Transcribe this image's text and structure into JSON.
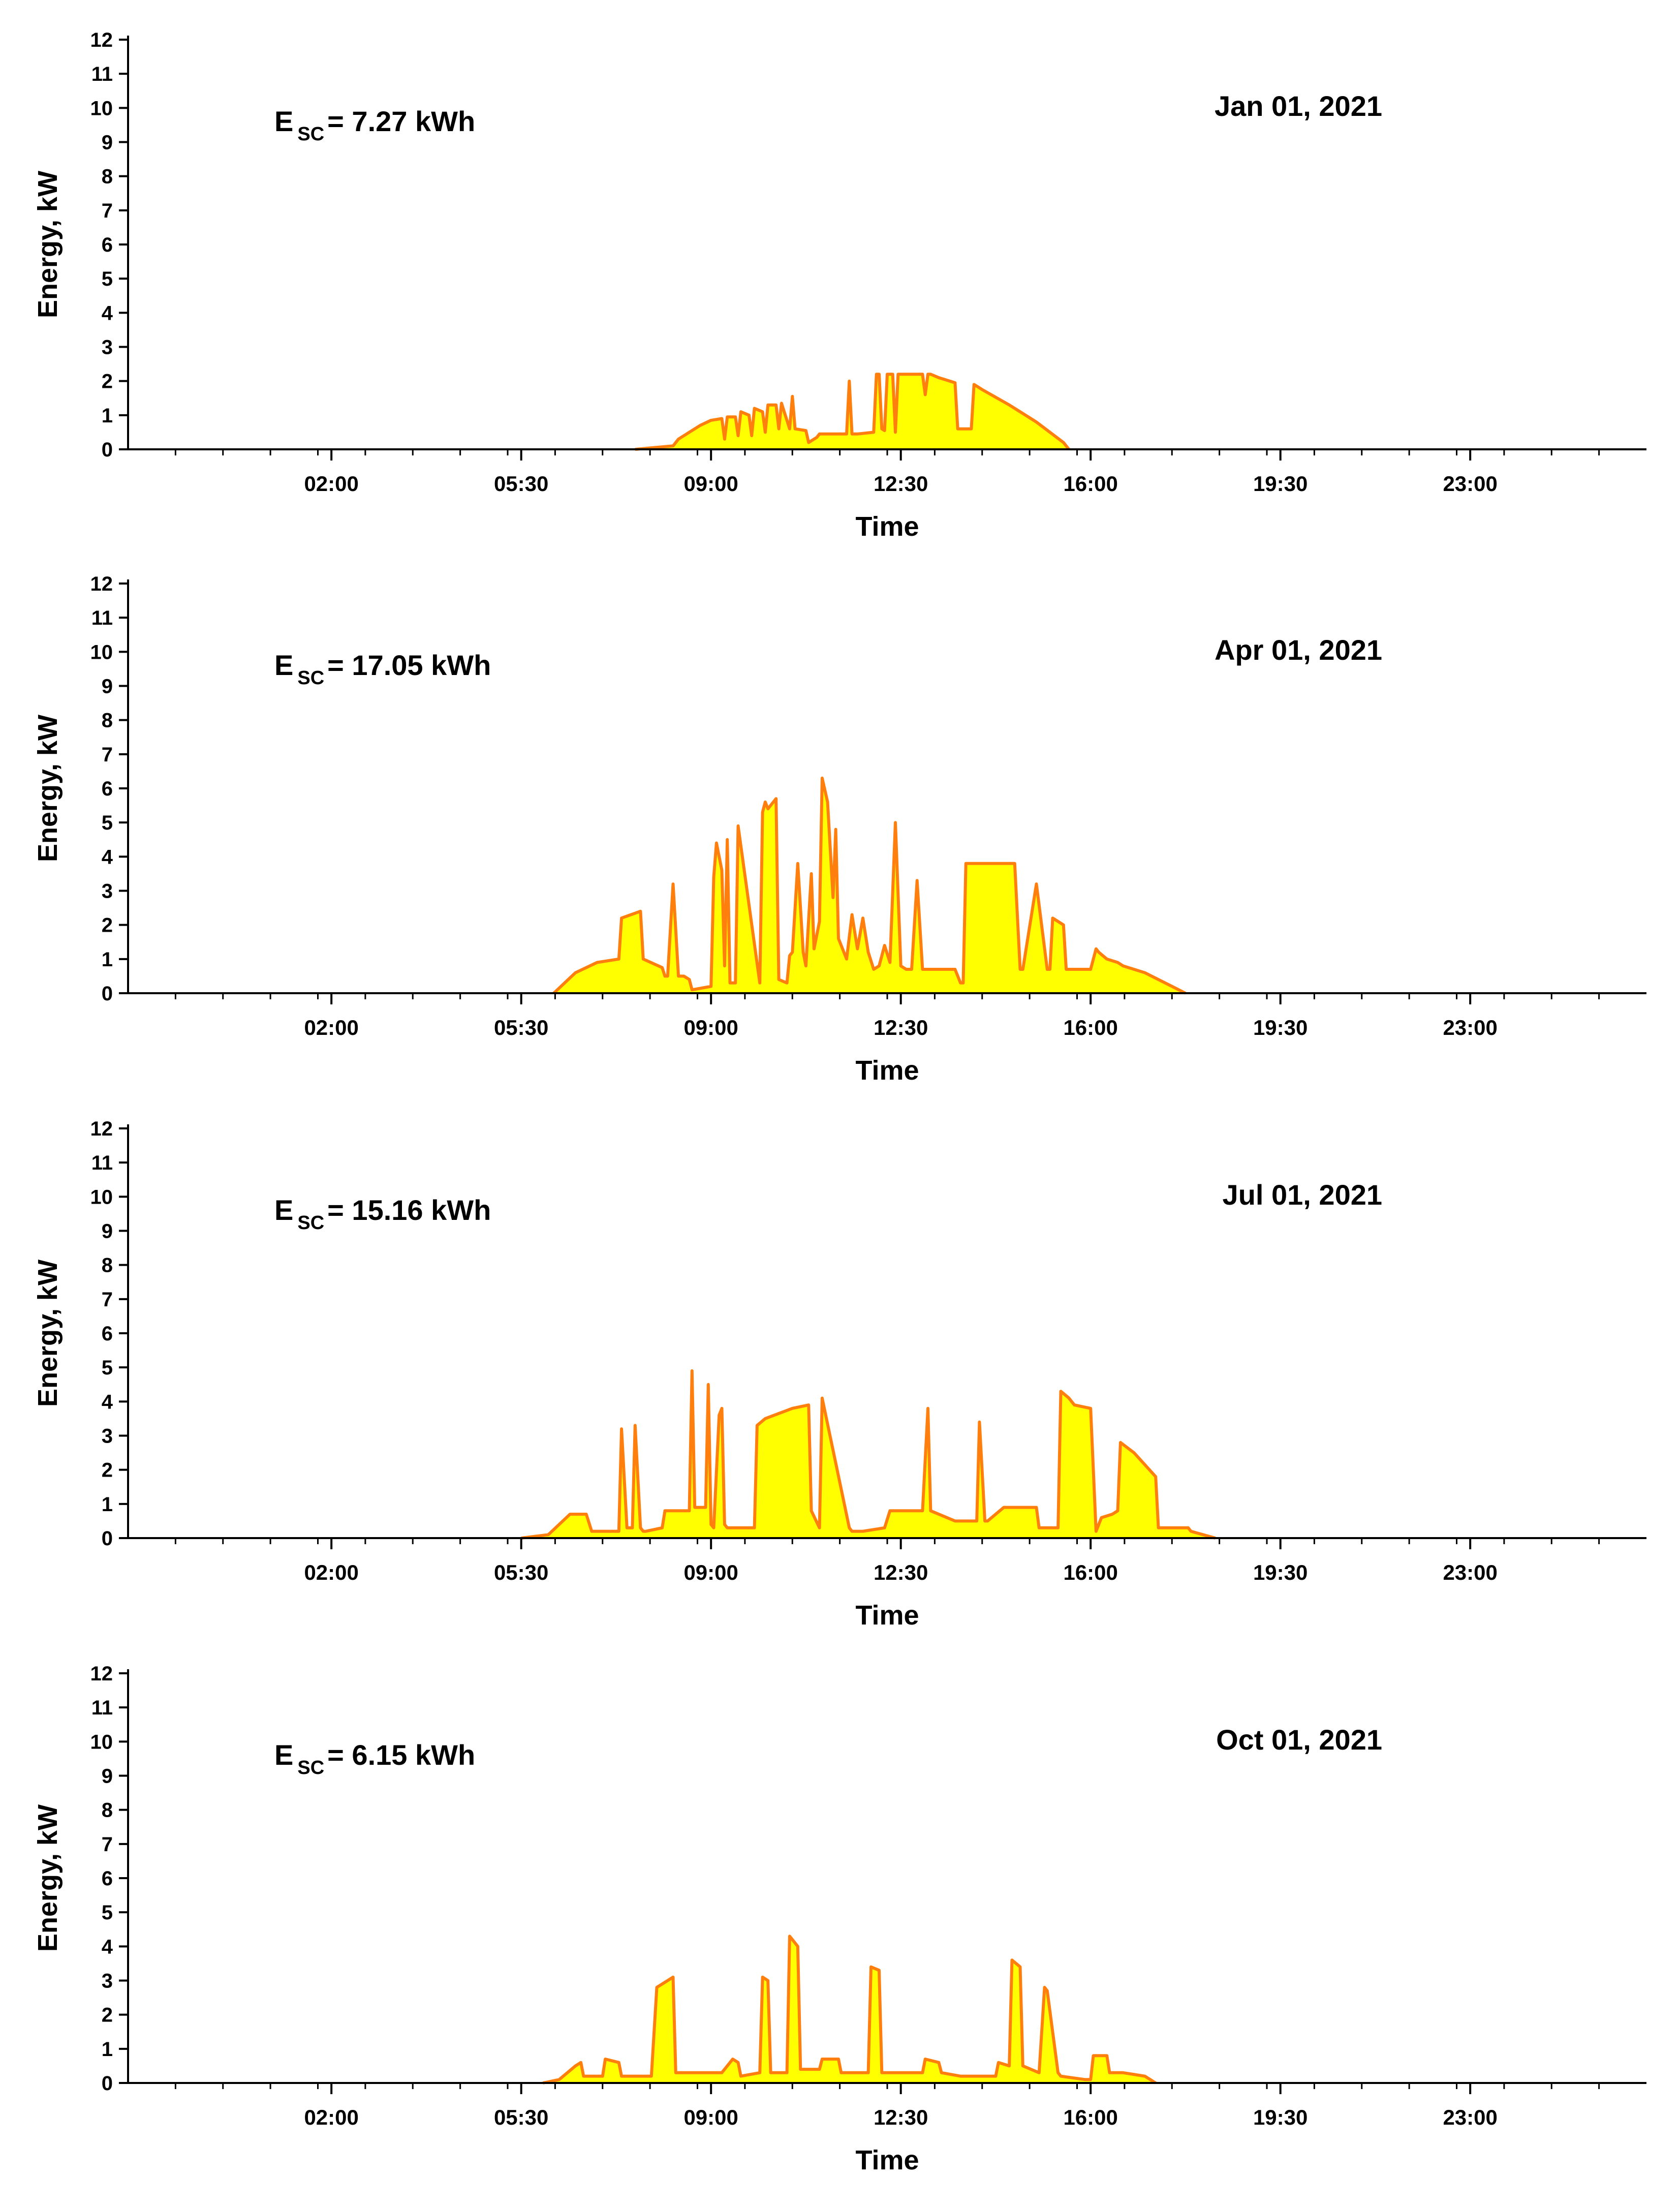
{
  "figure": {
    "colors": {
      "fill": "#ffff00",
      "stroke": "#ff7f0e",
      "axis": "#000000"
    },
    "x_tick_labels": [
      "02:00",
      "05:30",
      "09:00",
      "12:30",
      "16:00",
      "19:30",
      "23:00"
    ]
  },
  "chart_data": [
    {
      "type": "area",
      "date_label": "Jan 01, 2021",
      "annotation": {
        "prefix": "E",
        "subscript": "SC",
        "value_text": "= 7.27 kWh"
      },
      "xlabel": "Time",
      "ylabel": "Energy, kW",
      "xlim": [
        -1.75,
        26.25
      ],
      "ylim": [
        0,
        12
      ],
      "x_ticks": [
        2,
        5.5,
        9,
        12.5,
        16,
        19.5,
        23
      ],
      "y_ticks": [
        0,
        1,
        2,
        3,
        4,
        5,
        6,
        7,
        8,
        9,
        10,
        11,
        12
      ],
      "x": [
        7.6,
        8.3,
        8.4,
        8.6,
        8.8,
        9.0,
        9.2,
        9.25,
        9.3,
        9.45,
        9.5,
        9.55,
        9.7,
        9.75,
        9.8,
        9.95,
        10.0,
        10.05,
        10.2,
        10.25,
        10.3,
        10.45,
        10.5,
        10.55,
        10.75,
        10.8,
        10.9,
        10.95,
        11.0,
        11.5,
        11.55,
        11.6,
        11.65,
        11.7,
        12.0,
        12.05,
        12.1,
        12.15,
        12.2,
        12.25,
        12.35,
        12.4,
        12.45,
        12.5,
        12.55,
        12.9,
        12.95,
        13.0,
        13.05,
        13.2,
        13.5,
        13.55,
        13.6,
        13.8,
        13.85,
        13.9,
        14.0,
        14.5,
        15.0,
        15.5,
        15.6
      ],
      "y": [
        0,
        0.1,
        0.3,
        0.5,
        0.7,
        0.85,
        0.9,
        0.3,
        0.95,
        0.95,
        0.4,
        1.1,
        1.0,
        0.4,
        1.2,
        1.1,
        0.5,
        1.3,
        1.3,
        0.6,
        1.35,
        0.6,
        1.55,
        0.6,
        0.55,
        0.2,
        0.3,
        0.35,
        0.45,
        0.45,
        2.0,
        0.45,
        0.45,
        0.45,
        0.5,
        2.2,
        2.2,
        0.6,
        0.55,
        2.2,
        2.2,
        0.5,
        2.2,
        2.2,
        2.2,
        2.2,
        1.6,
        2.2,
        2.2,
        2.1,
        1.95,
        0.6,
        0.6,
        0.6,
        1.9,
        1.85,
        1.75,
        1.3,
        0.8,
        0.2,
        0
      ]
    },
    {
      "type": "area",
      "date_label": "Apr 01, 2021",
      "annotation": {
        "prefix": "E",
        "subscript": "SC",
        "value_text": "= 17.05 kWh"
      },
      "xlabel": "Time",
      "ylabel": "Energy, kW",
      "xlim": [
        -1.75,
        26.25
      ],
      "ylim": [
        0,
        12
      ],
      "x_ticks": [
        2,
        5.5,
        9,
        12.5,
        16,
        19.5,
        23
      ],
      "y_ticks": [
        0,
        1,
        2,
        3,
        4,
        5,
        6,
        7,
        8,
        9,
        10,
        11,
        12
      ],
      "x": [
        6.1,
        6.5,
        6.9,
        7.3,
        7.35,
        7.7,
        7.75,
        8.1,
        8.15,
        8.2,
        8.3,
        8.4,
        8.5,
        8.6,
        8.65,
        9.0,
        9.05,
        9.1,
        9.2,
        9.25,
        9.3,
        9.35,
        9.45,
        9.5,
        9.9,
        9.95,
        10.0,
        10.05,
        10.2,
        10.25,
        10.4,
        10.45,
        10.5,
        10.6,
        10.7,
        10.75,
        10.85,
        10.9,
        11.0,
        11.05,
        11.15,
        11.25,
        11.3,
        11.35,
        11.5,
        11.6,
        11.7,
        11.8,
        11.9,
        12.0,
        12.1,
        12.2,
        12.3,
        12.4,
        12.5,
        12.6,
        12.7,
        12.8,
        12.9,
        13.0,
        13.1,
        13.2,
        13.25,
        13.3,
        13.5,
        13.6,
        13.65,
        13.7,
        14.6,
        14.7,
        14.75,
        15.0,
        15.2,
        15.25,
        15.3,
        15.5,
        15.55,
        15.6,
        15.7,
        16.0,
        16.1,
        16.15,
        16.3,
        16.5,
        16.6,
        17.0,
        17.5,
        17.75
      ],
      "y": [
        0,
        0.6,
        0.9,
        1.0,
        2.2,
        2.4,
        1.0,
        0.75,
        0.5,
        0.5,
        3.2,
        0.5,
        0.5,
        0.4,
        0.1,
        0.2,
        3.4,
        4.4,
        3.6,
        0.8,
        4.5,
        0.3,
        0.3,
        4.9,
        0.3,
        5.3,
        5.6,
        5.4,
        5.7,
        0.4,
        0.3,
        1.1,
        1.2,
        3.8,
        1.2,
        0.8,
        3.5,
        1.3,
        2.1,
        6.3,
        5.6,
        2.8,
        4.8,
        1.6,
        1.0,
        2.3,
        1.3,
        2.2,
        1.2,
        0.7,
        0.8,
        1.4,
        0.9,
        5.0,
        0.8,
        0.7,
        0.7,
        3.3,
        0.7,
        0.7,
        0.7,
        0.7,
        0.7,
        0.7,
        0.7,
        0.3,
        0.3,
        3.8,
        3.8,
        0.7,
        0.7,
        3.2,
        0.7,
        0.7,
        2.2,
        2.0,
        0.7,
        0.7,
        0.7,
        0.7,
        1.3,
        1.2,
        1.0,
        0.9,
        0.8,
        0.6,
        0.2,
        0
      ]
    },
    {
      "type": "area",
      "date_label": "Jul 01, 2021",
      "annotation": {
        "prefix": "E",
        "subscript": "SC",
        "value_text": "= 15.16 kWh"
      },
      "xlabel": "Time",
      "ylabel": "Energy, kW",
      "xlim": [
        -1.75,
        26.25
      ],
      "ylim": [
        0,
        12
      ],
      "x_ticks": [
        2,
        5.5,
        9,
        12.5,
        16,
        19.5,
        23
      ],
      "y_ticks": [
        0,
        1,
        2,
        3,
        4,
        5,
        6,
        7,
        8,
        9,
        10,
        11,
        12
      ],
      "x": [
        5.5,
        6.0,
        6.4,
        6.7,
        6.8,
        7.3,
        7.35,
        7.45,
        7.55,
        7.6,
        7.7,
        7.75,
        7.8,
        8.1,
        8.15,
        8.6,
        8.65,
        8.7,
        8.9,
        8.95,
        9.0,
        9.05,
        9.15,
        9.2,
        9.25,
        9.3,
        9.4,
        9.5,
        9.8,
        9.85,
        10.0,
        10.5,
        10.8,
        10.85,
        11.0,
        11.05,
        11.55,
        11.6,
        11.7,
        11.75,
        11.8,
        12.2,
        12.3,
        12.35,
        12.9,
        13.0,
        13.05,
        13.5,
        13.6,
        13.9,
        13.95,
        14.05,
        14.1,
        14.4,
        14.45,
        15.0,
        15.05,
        15.4,
        15.45,
        15.6,
        15.7,
        16.0,
        16.1,
        16.2,
        16.4,
        16.5,
        16.55,
        16.8,
        17.2,
        17.25,
        17.8,
        17.85,
        18.3
      ],
      "y": [
        0,
        0.1,
        0.7,
        0.7,
        0.2,
        0.2,
        3.2,
        0.3,
        0.3,
        3.3,
        0.3,
        0.2,
        0.2,
        0.3,
        0.8,
        0.8,
        4.9,
        0.9,
        0.9,
        4.5,
        0.4,
        0.3,
        3.6,
        3.8,
        0.4,
        0.3,
        0.3,
        0.3,
        0.3,
        3.3,
        3.5,
        3.8,
        3.9,
        0.8,
        0.3,
        4.1,
        0.3,
        0.2,
        0.2,
        0.2,
        0.2,
        0.3,
        0.8,
        0.8,
        0.8,
        3.8,
        0.8,
        0.5,
        0.5,
        0.5,
        3.4,
        0.5,
        0.5,
        0.9,
        0.9,
        0.9,
        0.3,
        0.3,
        4.3,
        4.1,
        3.9,
        3.8,
        0.2,
        0.6,
        0.7,
        0.8,
        2.8,
        2.5,
        1.8,
        0.3,
        0.3,
        0.2,
        0
      ]
    },
    {
      "type": "area",
      "date_label": "Oct 01, 2021",
      "annotation": {
        "prefix": "E",
        "subscript": "SC",
        "value_text": "= 6.15 kWh"
      },
      "xlabel": "Time",
      "ylabel": "Energy, kW",
      "xlim": [
        -1.75,
        26.25
      ],
      "ylim": [
        0,
        12
      ],
      "x_ticks": [
        2,
        5.5,
        9,
        12.5,
        16,
        19.5,
        23
      ],
      "y_ticks": [
        0,
        1,
        2,
        3,
        4,
        5,
        6,
        7,
        8,
        9,
        10,
        11,
        12
      ],
      "x": [
        5.9,
        6.2,
        6.5,
        6.6,
        6.65,
        7.0,
        7.05,
        7.3,
        7.35,
        7.9,
        8.0,
        8.3,
        8.35,
        8.5,
        9.2,
        9.4,
        9.5,
        9.55,
        9.9,
        9.95,
        10.05,
        10.1,
        10.4,
        10.45,
        10.6,
        10.65,
        11.0,
        11.05,
        11.35,
        11.4,
        11.8,
        11.9,
        11.95,
        12.1,
        12.15,
        12.9,
        12.95,
        13.2,
        13.25,
        13.6,
        13.65,
        14.25,
        14.3,
        14.5,
        14.55,
        14.7,
        14.75,
        15.05,
        15.15,
        15.2,
        15.4,
        15.45,
        15.9,
        16.0,
        16.05,
        16.3,
        16.35,
        16.6,
        17.0,
        17.2
      ],
      "y": [
        0,
        0.1,
        0.5,
        0.6,
        0.2,
        0.2,
        0.7,
        0.6,
        0.2,
        0.2,
        2.8,
        3.1,
        0.3,
        0.3,
        0.3,
        0.7,
        0.6,
        0.2,
        0.3,
        3.1,
        3.0,
        0.3,
        0.3,
        4.3,
        4.0,
        0.4,
        0.4,
        0.7,
        0.7,
        0.3,
        0.3,
        0.3,
        3.4,
        3.3,
        0.3,
        0.3,
        0.7,
        0.6,
        0.3,
        0.2,
        0.2,
        0.2,
        0.6,
        0.5,
        3.6,
        3.4,
        0.5,
        0.3,
        2.8,
        2.7,
        0.3,
        0.2,
        0.1,
        0.1,
        0.8,
        0.8,
        0.3,
        0.3,
        0.2,
        0
      ]
    }
  ]
}
